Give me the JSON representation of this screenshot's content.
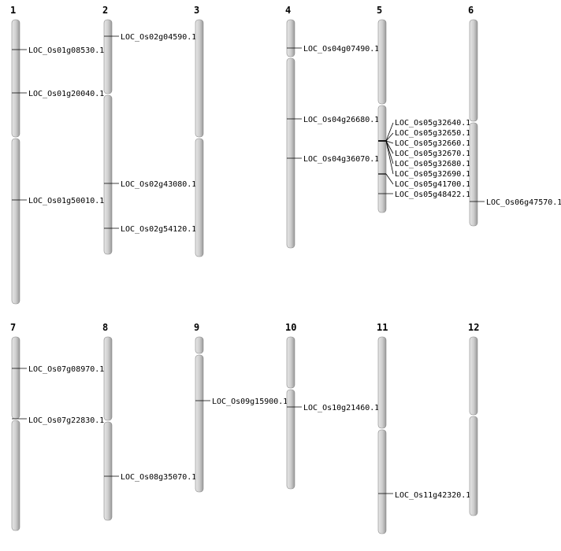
{
  "chromosomes": [
    {
      "label": "1",
      "genes": [
        "LOC_Os01g08530.1",
        "LOC_Os01g20040.1",
        "LOC_Os01g50010.1"
      ]
    },
    {
      "label": "2",
      "genes": [
        "LOC_Os02g04590.1",
        "LOC_Os02g43080.1",
        "LOC_Os02g54120.1"
      ]
    },
    {
      "label": "3",
      "genes": []
    },
    {
      "label": "4",
      "genes": [
        "LOC_Os04g07490.1",
        "LOC_Os04g26680.1",
        "LOC_Os04g36070.1"
      ]
    },
    {
      "label": "5",
      "genes": [
        "LOC_Os05g32640.1",
        "LOC_Os05g32650.1",
        "LOC_Os05g32660.1",
        "LOC_Os05g32670.1",
        "LOC_Os05g32680.1",
        "LOC_Os05g32690.1",
        "LOC_Os05g41700.1",
        "LOC_Os05g48422.1"
      ]
    },
    {
      "label": "6",
      "genes": [
        "LOC_Os06g47570.1"
      ]
    },
    {
      "label": "7",
      "genes": [
        "LOC_Os07g08970.1",
        "LOC_Os07g22830.1"
      ]
    },
    {
      "label": "8",
      "genes": [
        "LOC_Os08g35070.1"
      ]
    },
    {
      "label": "9",
      "genes": [
        "LOC_Os09g15900.1"
      ]
    },
    {
      "label": "10",
      "genes": [
        "LOC_Os10g21460.1"
      ]
    },
    {
      "label": "11",
      "genes": [
        "LOC_Os11g42320.1"
      ]
    },
    {
      "label": "12",
      "genes": []
    }
  ]
}
